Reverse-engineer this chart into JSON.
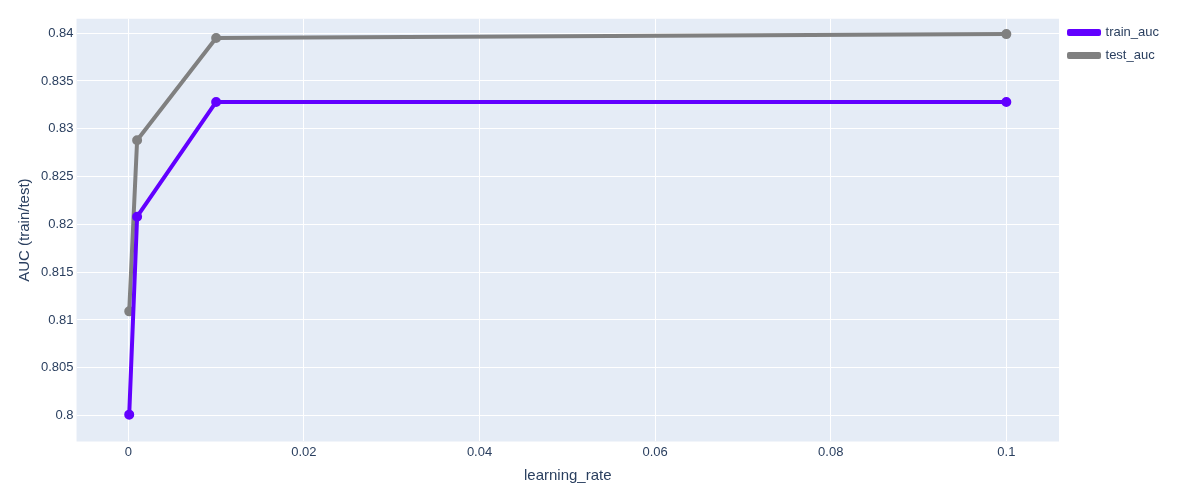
{
  "chart_data": {
    "type": "line",
    "xlabel": "learning_rate",
    "ylabel": "AUC (train/test)",
    "series": [
      {
        "name": "train_auc",
        "color": "#6200ff",
        "x": [
          0.0001,
          0.001,
          0.01,
          0.1
        ],
        "values": [
          0.8001,
          0.8208,
          0.8328,
          0.8328
        ]
      },
      {
        "name": "test_auc",
        "color": "#808080",
        "x": [
          0.0001,
          0.001,
          0.01,
          0.1
        ],
        "values": [
          0.8109,
          0.8288,
          0.8395,
          0.8399
        ]
      }
    ],
    "xlim": [
      -0.0059,
      0.106
    ],
    "xticks": [
      0,
      0.02,
      0.04,
      0.06,
      0.08,
      0.1
    ],
    "ylim": [
      0.7973,
      0.8415
    ],
    "yticks": [
      0.8,
      0.805,
      0.81,
      0.815,
      0.82,
      0.825,
      0.83,
      0.835,
      0.84
    ],
    "grid": true,
    "legend": "top right",
    "marker": "circle",
    "line_style": "solid"
  }
}
